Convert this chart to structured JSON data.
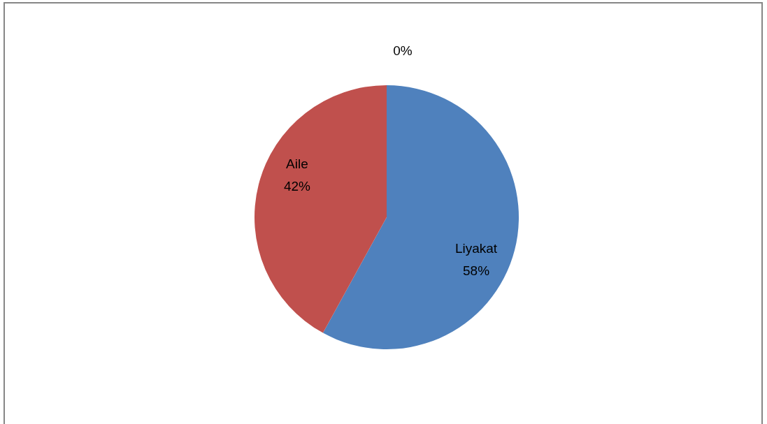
{
  "chart_data": {
    "type": "pie",
    "categories": [
      "Liyakat",
      "Aile",
      null
    ],
    "values": [
      58,
      42,
      0
    ],
    "colors": [
      "#4f81bd",
      "#c0504d",
      "#9bbb59"
    ],
    "value_labels": [
      "58%",
      "42%",
      "0%"
    ]
  }
}
